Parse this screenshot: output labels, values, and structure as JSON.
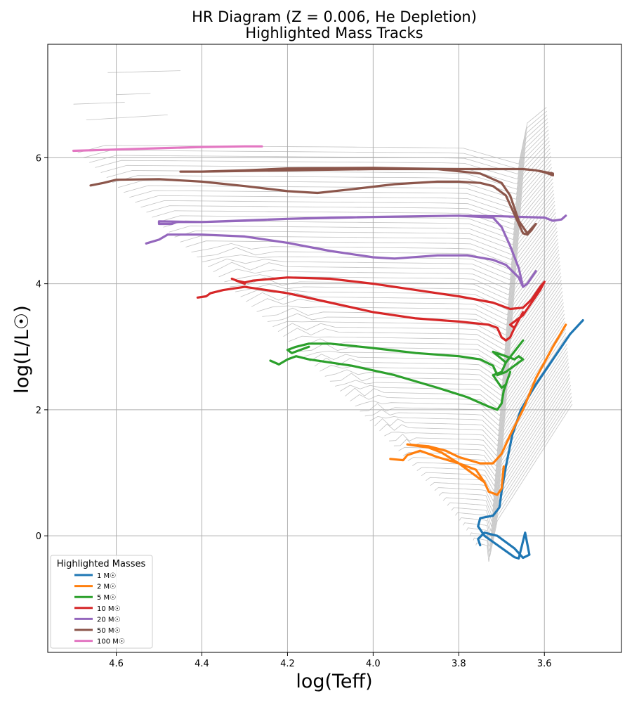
{
  "chart_data": {
    "type": "line",
    "title_line1": "HR Diagram (Z = 0.006, He Depletion)",
    "title_line2": "Highlighted Mass Tracks",
    "xlabel": "log(Teff)",
    "ylabel": "log(L/L☉)",
    "xlim": [
      4.76,
      3.42
    ],
    "ylim": [
      -1.85,
      7.8
    ],
    "x_inverted": true,
    "grid": true,
    "x_ticks": [
      {
        "value": 4.6,
        "label": "4.6"
      },
      {
        "value": 4.4,
        "label": "4.4"
      },
      {
        "value": 4.2,
        "label": "4.2"
      },
      {
        "value": 4.0,
        "label": "4.0"
      },
      {
        "value": 3.8,
        "label": "3.8"
      },
      {
        "value": 3.6,
        "label": "3.6"
      }
    ],
    "y_ticks": [
      {
        "value": 0,
        "label": "0"
      },
      {
        "value": 2,
        "label": "2"
      },
      {
        "value": 4,
        "label": "4"
      },
      {
        "value": 6,
        "label": "6"
      }
    ],
    "legend": {
      "title": "Highlighted Masses",
      "placement": "bottom-left"
    },
    "background_tracks_color": "#a8a8a8",
    "series": [
      {
        "name": "1 M☉",
        "color": "#1f77b4",
        "points": [
          [
            3.75,
            -0.15
          ],
          [
            3.755,
            -0.05
          ],
          [
            3.74,
            0.05
          ],
          [
            3.71,
            0.0
          ],
          [
            3.67,
            -0.2
          ],
          [
            3.65,
            -0.35
          ],
          [
            3.635,
            -0.3
          ],
          [
            3.645,
            0.05
          ],
          [
            3.645,
            0.05
          ],
          [
            3.66,
            -0.36
          ],
          [
            3.67,
            -0.34
          ],
          [
            3.74,
            0.0
          ],
          [
            3.755,
            0.15
          ],
          [
            3.75,
            0.28
          ],
          [
            3.72,
            0.32
          ],
          [
            3.705,
            0.45
          ],
          [
            3.7,
            0.7
          ],
          [
            3.69,
            1.1
          ],
          [
            3.675,
            1.6
          ],
          [
            3.655,
            2.0
          ],
          [
            3.62,
            2.4
          ],
          [
            3.58,
            2.8
          ],
          [
            3.54,
            3.2
          ],
          [
            3.51,
            3.42
          ]
        ]
      },
      {
        "name": "2 M☉",
        "color": "#ff7f0e",
        "points": [
          [
            3.96,
            1.22
          ],
          [
            3.93,
            1.2
          ],
          [
            3.92,
            1.28
          ],
          [
            3.89,
            1.35
          ],
          [
            3.87,
            1.3
          ],
          [
            3.85,
            1.25
          ],
          [
            3.8,
            1.15
          ],
          [
            3.76,
            1.05
          ],
          [
            3.74,
            0.85
          ],
          [
            3.73,
            0.7
          ],
          [
            3.71,
            0.65
          ],
          [
            3.7,
            0.75
          ],
          [
            3.695,
            1.1
          ],
          [
            3.7,
            0.75
          ],
          [
            3.71,
            0.65
          ],
          [
            3.73,
            0.7
          ],
          [
            3.74,
            0.85
          ],
          [
            3.78,
            1.05
          ],
          [
            3.8,
            1.15
          ],
          [
            3.84,
            1.32
          ],
          [
            3.87,
            1.4
          ],
          [
            3.92,
            1.45
          ],
          [
            3.87,
            1.42
          ],
          [
            3.83,
            1.35
          ],
          [
            3.8,
            1.25
          ],
          [
            3.75,
            1.15
          ],
          [
            3.72,
            1.15
          ],
          [
            3.7,
            1.3
          ],
          [
            3.68,
            1.6
          ],
          [
            3.65,
            2.0
          ],
          [
            3.62,
            2.5
          ],
          [
            3.58,
            3.0
          ],
          [
            3.55,
            3.35
          ]
        ]
      },
      {
        "name": "5 M☉",
        "color": "#2ca02c",
        "points": [
          [
            4.24,
            2.78
          ],
          [
            4.22,
            2.72
          ],
          [
            4.2,
            2.8
          ],
          [
            4.18,
            2.85
          ],
          [
            4.15,
            2.8
          ],
          [
            4.05,
            2.7
          ],
          [
            3.95,
            2.55
          ],
          [
            3.85,
            2.35
          ],
          [
            3.78,
            2.2
          ],
          [
            3.73,
            2.05
          ],
          [
            3.71,
            2.0
          ],
          [
            3.7,
            2.1
          ],
          [
            3.695,
            2.3
          ],
          [
            3.68,
            2.6
          ],
          [
            3.68,
            2.6
          ],
          [
            3.69,
            2.4
          ],
          [
            3.7,
            2.35
          ],
          [
            3.72,
            2.55
          ],
          [
            3.7,
            2.6
          ],
          [
            3.69,
            2.75
          ],
          [
            3.65,
            3.1
          ],
          [
            3.65,
            3.1
          ],
          [
            3.69,
            2.75
          ],
          [
            3.72,
            2.92
          ],
          [
            3.69,
            2.85
          ],
          [
            3.67,
            2.8
          ],
          [
            3.66,
            2.85
          ],
          [
            3.65,
            2.8
          ],
          [
            3.69,
            2.6
          ],
          [
            3.71,
            2.55
          ],
          [
            3.72,
            2.7
          ],
          [
            3.75,
            2.8
          ],
          [
            3.8,
            2.85
          ],
          [
            3.9,
            2.9
          ],
          [
            4.0,
            2.98
          ],
          [
            4.1,
            3.05
          ],
          [
            4.15,
            3.05
          ],
          [
            4.18,
            3.0
          ],
          [
            4.2,
            2.95
          ],
          [
            4.19,
            2.9
          ],
          [
            4.17,
            2.95
          ],
          [
            4.15,
            3.0
          ]
        ]
      },
      {
        "name": "10 M☉",
        "color": "#d62728",
        "points": [
          [
            4.41,
            3.78
          ],
          [
            4.39,
            3.8
          ],
          [
            4.38,
            3.85
          ],
          [
            4.35,
            3.9
          ],
          [
            4.3,
            3.95
          ],
          [
            4.2,
            3.85
          ],
          [
            4.1,
            3.7
          ],
          [
            4.0,
            3.55
          ],
          [
            3.9,
            3.45
          ],
          [
            3.8,
            3.4
          ],
          [
            3.73,
            3.35
          ],
          [
            3.71,
            3.3
          ],
          [
            3.7,
            3.15
          ],
          [
            3.69,
            3.1
          ],
          [
            3.68,
            3.15
          ],
          [
            3.67,
            3.3
          ],
          [
            3.65,
            3.55
          ],
          [
            3.65,
            3.55
          ],
          [
            3.67,
            3.3
          ],
          [
            3.68,
            3.35
          ],
          [
            3.65,
            3.5
          ],
          [
            3.63,
            3.7
          ],
          [
            3.61,
            3.9
          ],
          [
            3.6,
            4.03
          ],
          [
            3.6,
            4.03
          ],
          [
            3.61,
            3.95
          ],
          [
            3.63,
            3.75
          ],
          [
            3.65,
            3.62
          ],
          [
            3.68,
            3.6
          ],
          [
            3.72,
            3.7
          ],
          [
            3.8,
            3.8
          ],
          [
            3.9,
            3.9
          ],
          [
            4.0,
            4.0
          ],
          [
            4.1,
            4.08
          ],
          [
            4.2,
            4.1
          ],
          [
            4.28,
            4.05
          ],
          [
            4.3,
            4.02
          ],
          [
            4.32,
            4.05
          ],
          [
            4.3,
            4.0
          ],
          [
            4.33,
            4.08
          ]
        ]
      },
      {
        "name": "20 M☉",
        "color": "#9467bd",
        "points": [
          [
            4.53,
            4.64
          ],
          [
            4.5,
            4.7
          ],
          [
            4.48,
            4.78
          ],
          [
            4.4,
            4.78
          ],
          [
            4.3,
            4.75
          ],
          [
            4.2,
            4.65
          ],
          [
            4.1,
            4.52
          ],
          [
            4.0,
            4.42
          ],
          [
            3.95,
            4.4
          ],
          [
            3.85,
            4.45
          ],
          [
            3.78,
            4.45
          ],
          [
            3.72,
            4.38
          ],
          [
            3.69,
            4.3
          ],
          [
            3.66,
            4.1
          ],
          [
            3.65,
            3.95
          ],
          [
            3.64,
            4.0
          ],
          [
            3.63,
            4.1
          ],
          [
            3.62,
            4.2
          ],
          [
            3.62,
            4.2
          ],
          [
            3.64,
            4.0
          ],
          [
            3.65,
            3.95
          ],
          [
            3.66,
            4.25
          ],
          [
            3.68,
            4.6
          ],
          [
            3.7,
            4.9
          ],
          [
            3.72,
            5.05
          ],
          [
            3.8,
            5.08
          ],
          [
            3.9,
            5.07
          ],
          [
            4.0,
            5.06
          ],
          [
            4.1,
            5.05
          ],
          [
            4.2,
            5.03
          ],
          [
            4.3,
            5.0
          ],
          [
            4.4,
            4.98
          ],
          [
            4.46,
            4.98
          ],
          [
            4.47,
            4.95
          ],
          [
            4.5,
            4.95
          ],
          [
            4.5,
            4.99
          ],
          [
            4.4,
            4.98
          ],
          [
            4.2,
            5.03
          ],
          [
            4.0,
            5.06
          ],
          [
            3.8,
            5.08
          ],
          [
            3.7,
            5.07
          ],
          [
            3.6,
            5.05
          ],
          [
            3.58,
            5.0
          ],
          [
            3.56,
            5.02
          ],
          [
            3.55,
            5.08
          ]
        ]
      },
      {
        "name": "50 M☉",
        "color": "#8c564b",
        "points": [
          [
            4.66,
            5.56
          ],
          [
            4.63,
            5.6
          ],
          [
            4.6,
            5.65
          ],
          [
            4.5,
            5.66
          ],
          [
            4.4,
            5.62
          ],
          [
            4.3,
            5.55
          ],
          [
            4.2,
            5.47
          ],
          [
            4.13,
            5.44
          ],
          [
            4.05,
            5.5
          ],
          [
            3.95,
            5.58
          ],
          [
            3.85,
            5.62
          ],
          [
            3.8,
            5.62
          ],
          [
            3.75,
            5.6
          ],
          [
            3.72,
            5.55
          ],
          [
            3.69,
            5.4
          ],
          [
            3.67,
            5.1
          ],
          [
            3.65,
            4.8
          ],
          [
            3.64,
            4.78
          ],
          [
            3.63,
            4.85
          ],
          [
            3.62,
            4.95
          ],
          [
            3.62,
            4.95
          ],
          [
            3.64,
            4.8
          ],
          [
            3.66,
            5.0
          ],
          [
            3.68,
            5.4
          ],
          [
            3.7,
            5.6
          ],
          [
            3.75,
            5.75
          ],
          [
            3.85,
            5.82
          ],
          [
            4.0,
            5.84
          ],
          [
            4.2,
            5.83
          ],
          [
            4.3,
            5.8
          ],
          [
            4.4,
            5.78
          ],
          [
            4.45,
            5.78
          ],
          [
            4.4,
            5.78
          ],
          [
            4.2,
            5.8
          ],
          [
            4.0,
            5.82
          ],
          [
            3.8,
            5.82
          ],
          [
            3.65,
            5.82
          ],
          [
            3.62,
            5.8
          ],
          [
            3.58,
            5.75
          ],
          [
            3.58,
            5.72
          ],
          [
            3.6,
            5.77
          ],
          [
            3.62,
            5.8
          ]
        ]
      },
      {
        "name": "100 M☉",
        "color": "#e377c2",
        "points": [
          [
            4.7,
            6.11
          ],
          [
            4.6,
            6.13
          ],
          [
            4.5,
            6.15
          ],
          [
            4.4,
            6.17
          ],
          [
            4.3,
            6.18
          ],
          [
            4.26,
            6.18
          ]
        ]
      }
    ]
  }
}
